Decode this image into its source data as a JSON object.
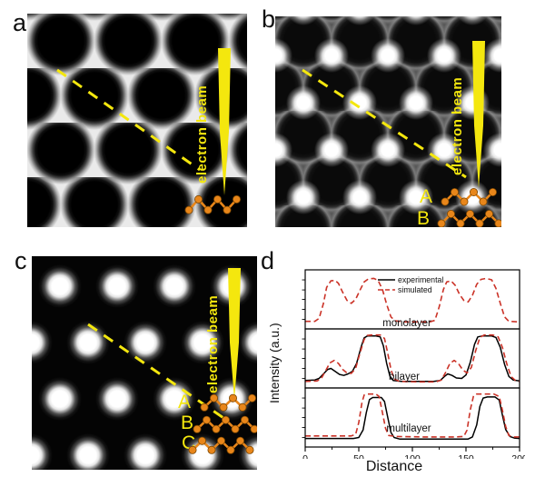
{
  "panels": {
    "a": {
      "label": "a",
      "beam_label": "electron beam"
    },
    "b": {
      "label": "b",
      "beam_label": "electron beam",
      "layer_labels": [
        "A",
        "B"
      ]
    },
    "c": {
      "label": "c",
      "beam_label": "electron beam",
      "layer_labels": [
        "A",
        "B",
        "C"
      ]
    },
    "d": {
      "label": "d"
    }
  },
  "colors": {
    "beam": "#f4e70e",
    "atoms": "#e8861a",
    "experimental": "#000000",
    "simulated": "#cb3328"
  },
  "chart_data": {
    "type": "line",
    "xlabel": "Distance",
    "ylabel": "Intensity (a.u.)",
    "xlim": [
      0,
      200
    ],
    "xticks": [
      0,
      50,
      100,
      150,
      200
    ],
    "x_minor_step": 25,
    "grid": false,
    "legend_position": "top-left-of-first-subplot",
    "legend": [
      {
        "label": "experimental",
        "style": "solid",
        "color": "#000000"
      },
      {
        "label": "simulated",
        "style": "dashed",
        "color": "#cb3328"
      }
    ],
    "subplots": [
      {
        "label": "monolayer",
        "series": [
          {
            "name": "simulated",
            "style": "dashed",
            "points": [
              [
                0,
                0.06
              ],
              [
                9,
                0.06
              ],
              [
                13,
                0.12
              ],
              [
                17,
                0.42
              ],
              [
                20,
                0.74
              ],
              [
                24,
                0.87
              ],
              [
                28,
                0.88
              ],
              [
                31,
                0.82
              ],
              [
                35,
                0.64
              ],
              [
                39,
                0.48
              ],
              [
                43,
                0.42
              ],
              [
                47,
                0.5
              ],
              [
                51,
                0.68
              ],
              [
                55,
                0.85
              ],
              [
                59,
                0.91
              ],
              [
                64,
                0.92
              ],
              [
                68,
                0.88
              ],
              [
                72,
                0.7
              ],
              [
                76,
                0.4
              ],
              [
                80,
                0.15
              ],
              [
                84,
                0.07
              ],
              [
                92,
                0.05
              ],
              [
                105,
                0.05
              ],
              [
                116,
                0.05
              ],
              [
                121,
                0.08
              ],
              [
                125,
                0.35
              ],
              [
                129,
                0.7
              ],
              [
                132,
                0.85
              ],
              [
                136,
                0.87
              ],
              [
                140,
                0.78
              ],
              [
                144,
                0.6
              ],
              [
                148,
                0.48
              ],
              [
                152,
                0.45
              ],
              [
                156,
                0.58
              ],
              [
                160,
                0.8
              ],
              [
                164,
                0.9
              ],
              [
                169,
                0.92
              ],
              [
                174,
                0.89
              ],
              [
                178,
                0.72
              ],
              [
                182,
                0.42
              ],
              [
                186,
                0.15
              ],
              [
                190,
                0.06
              ],
              [
                200,
                0.05
              ]
            ]
          }
        ]
      },
      {
        "label": "bilayer",
        "series": [
          {
            "name": "experimental",
            "style": "solid",
            "points": [
              [
                0,
                0.06
              ],
              [
                9,
                0.07
              ],
              [
                13,
                0.1
              ],
              [
                17,
                0.19
              ],
              [
                21,
                0.28
              ],
              [
                24,
                0.3
              ],
              [
                28,
                0.24
              ],
              [
                32,
                0.18
              ],
              [
                36,
                0.16
              ],
              [
                40,
                0.19
              ],
              [
                44,
                0.24
              ],
              [
                48,
                0.4
              ],
              [
                52,
                0.72
              ],
              [
                55,
                0.91
              ],
              [
                58,
                0.95
              ],
              [
                66,
                0.95
              ],
              [
                70,
                0.93
              ],
              [
                73,
                0.75
              ],
              [
                76,
                0.4
              ],
              [
                79,
                0.15
              ],
              [
                82,
                0.06
              ],
              [
                90,
                0.04
              ],
              [
                105,
                0.04
              ],
              [
                120,
                0.04
              ],
              [
                126,
                0.06
              ],
              [
                130,
                0.14
              ],
              [
                133,
                0.19
              ],
              [
                137,
                0.16
              ],
              [
                141,
                0.11
              ],
              [
                146,
                0.1
              ],
              [
                150,
                0.17
              ],
              [
                154,
                0.42
              ],
              [
                158,
                0.78
              ],
              [
                161,
                0.93
              ],
              [
                165,
                0.95
              ],
              [
                174,
                0.95
              ],
              [
                178,
                0.92
              ],
              [
                182,
                0.72
              ],
              [
                186,
                0.38
              ],
              [
                190,
                0.14
              ],
              [
                194,
                0.07
              ],
              [
                200,
                0.05
              ]
            ]
          },
          {
            "name": "simulated",
            "style": "dashed",
            "points": [
              [
                0,
                0.04
              ],
              [
                11,
                0.05
              ],
              [
                15,
                0.1
              ],
              [
                19,
                0.25
              ],
              [
                23,
                0.41
              ],
              [
                27,
                0.46
              ],
              [
                31,
                0.4
              ],
              [
                35,
                0.28
              ],
              [
                39,
                0.21
              ],
              [
                43,
                0.2
              ],
              [
                47,
                0.3
              ],
              [
                51,
                0.6
              ],
              [
                55,
                0.88
              ],
              [
                58,
                0.96
              ],
              [
                62,
                0.97
              ],
              [
                70,
                0.97
              ],
              [
                74,
                0.9
              ],
              [
                77,
                0.6
              ],
              [
                80,
                0.28
              ],
              [
                83,
                0.09
              ],
              [
                88,
                0.04
              ],
              [
                105,
                0.03
              ],
              [
                122,
                0.03
              ],
              [
                127,
                0.07
              ],
              [
                131,
                0.22
              ],
              [
                135,
                0.4
              ],
              [
                139,
                0.46
              ],
              [
                143,
                0.4
              ],
              [
                147,
                0.27
              ],
              [
                151,
                0.21
              ],
              [
                155,
                0.32
              ],
              [
                159,
                0.65
              ],
              [
                163,
                0.92
              ],
              [
                167,
                0.97
              ],
              [
                175,
                0.97
              ],
              [
                180,
                0.93
              ],
              [
                184,
                0.72
              ],
              [
                188,
                0.4
              ],
              [
                192,
                0.14
              ],
              [
                196,
                0.06
              ],
              [
                200,
                0.04
              ]
            ]
          }
        ]
      },
      {
        "label": "multilayer",
        "series": [
          {
            "name": "experimental",
            "style": "solid",
            "points": [
              [
                0,
                0.08
              ],
              [
                25,
                0.08
              ],
              [
                45,
                0.08
              ],
              [
                50,
                0.1
              ],
              [
                54,
                0.25
              ],
              [
                57,
                0.6
              ],
              [
                60,
                0.86
              ],
              [
                63,
                0.9
              ],
              [
                71,
                0.9
              ],
              [
                74,
                0.82
              ],
              [
                77,
                0.5
              ],
              [
                80,
                0.2
              ],
              [
                83,
                0.1
              ],
              [
                88,
                0.07
              ],
              [
                110,
                0.07
              ],
              [
                135,
                0.07
              ],
              [
                152,
                0.07
              ],
              [
                156,
                0.11
              ],
              [
                160,
                0.35
              ],
              [
                163,
                0.72
              ],
              [
                166,
                0.89
              ],
              [
                170,
                0.91
              ],
              [
                177,
                0.91
              ],
              [
                181,
                0.85
              ],
              [
                184,
                0.55
              ],
              [
                187,
                0.26
              ],
              [
                191,
                0.12
              ],
              [
                195,
                0.09
              ],
              [
                200,
                0.08
              ]
            ]
          },
          {
            "name": "simulated",
            "style": "dashed",
            "points": [
              [
                0,
                0.13
              ],
              [
                25,
                0.13
              ],
              [
                43,
                0.13
              ],
              [
                47,
                0.16
              ],
              [
                50,
                0.4
              ],
              [
                53,
                0.8
              ],
              [
                55,
                0.95
              ],
              [
                58,
                0.97
              ],
              [
                66,
                0.97
              ],
              [
                69,
                0.92
              ],
              [
                72,
                0.6
              ],
              [
                75,
                0.28
              ],
              [
                78,
                0.14
              ],
              [
                85,
                0.12
              ],
              [
                110,
                0.11
              ],
              [
                140,
                0.11
              ],
              [
                148,
                0.12
              ],
              [
                151,
                0.25
              ],
              [
                154,
                0.65
              ],
              [
                157,
                0.93
              ],
              [
                160,
                0.97
              ],
              [
                176,
                0.97
              ],
              [
                181,
                0.92
              ],
              [
                184,
                0.65
              ],
              [
                187,
                0.32
              ],
              [
                190,
                0.14
              ],
              [
                194,
                0.11
              ],
              [
                200,
                0.11
              ]
            ]
          }
        ]
      }
    ]
  }
}
